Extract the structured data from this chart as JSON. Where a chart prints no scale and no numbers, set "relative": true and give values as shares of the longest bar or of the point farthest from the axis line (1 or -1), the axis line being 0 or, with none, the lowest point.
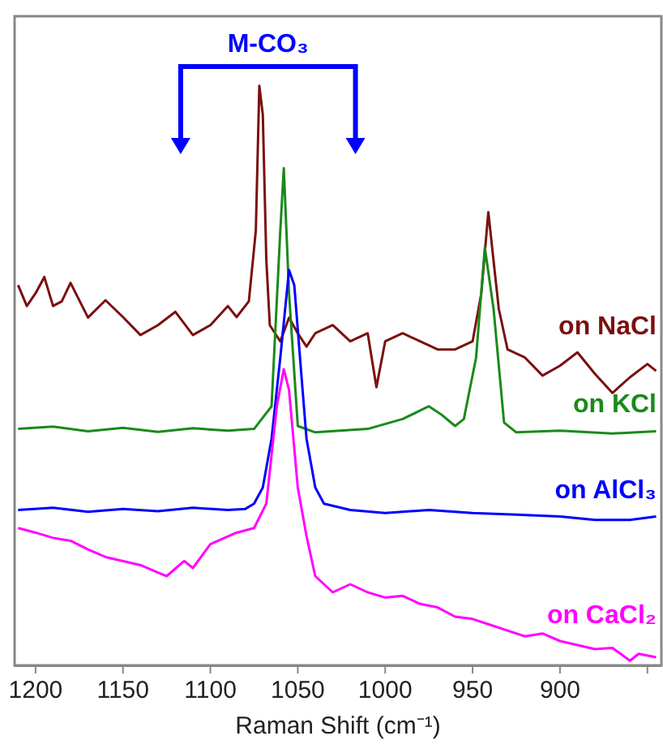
{
  "chart_data": {
    "type": "line",
    "relative": true,
    "xlabel": "Raman Shift (cm⁻¹)",
    "xlim": [
      1212,
      842
    ],
    "xticks": [
      1200,
      1150,
      1100,
      1050,
      1000,
      950,
      900,
      {
        "value": 850,
        "label": null
      }
    ],
    "annotations": [
      "M-CO₃"
    ],
    "marker": "none",
    "grid": false,
    "legend": false,
    "series": [
      {
        "name": "on NaCl",
        "color": "#7b1010",
        "x": [
          1210,
          1205,
          1200,
          1195,
          1190,
          1185,
          1180,
          1170,
          1160,
          1150,
          1140,
          1130,
          1120,
          1110,
          1100,
          1090,
          1085,
          1078,
          1074,
          1072,
          1070,
          1068,
          1066,
          1060,
          1055,
          1050,
          1045,
          1040,
          1030,
          1020,
          1010,
          1005,
          1000,
          990,
          980,
          970,
          960,
          950,
          945,
          941,
          938,
          935,
          930,
          920,
          910,
          900,
          890,
          880,
          870,
          860,
          850,
          845
        ],
        "values": [
          0.656,
          0.62,
          0.642,
          0.67,
          0.62,
          0.628,
          0.66,
          0.6,
          0.63,
          0.601,
          0.57,
          0.587,
          0.61,
          0.57,
          0.587,
          0.62,
          0.601,
          0.628,
          0.75,
          1.0,
          0.95,
          0.7,
          0.587,
          0.559,
          0.6,
          0.573,
          0.55,
          0.573,
          0.587,
          0.559,
          0.573,
          0.48,
          0.559,
          0.573,
          0.559,
          0.545,
          0.545,
          0.559,
          0.642,
          0.782,
          0.698,
          0.615,
          0.545,
          0.531,
          0.5,
          0.517,
          0.54,
          0.503,
          0.47,
          0.497,
          0.52,
          0.508
        ]
      },
      {
        "name": "on KCl",
        "color": "#1a8a1a",
        "x": [
          1210,
          1190,
          1170,
          1150,
          1130,
          1110,
          1090,
          1075,
          1065,
          1060,
          1058,
          1055,
          1050,
          1040,
          1010,
          990,
          975,
          968,
          960,
          955,
          948,
          943,
          938,
          932,
          925,
          900,
          870,
          845
        ],
        "values": [
          0.408,
          0.412,
          0.404,
          0.41,
          0.403,
          0.409,
          0.405,
          0.408,
          0.447,
          0.75,
          0.858,
          0.642,
          0.413,
          0.402,
          0.408,
          0.425,
          0.447,
          0.433,
          0.413,
          0.425,
          0.531,
          0.721,
          0.615,
          0.419,
          0.402,
          0.405,
          0.4,
          0.404
        ]
      },
      {
        "name": "on AlCl₃",
        "color": "#0000ff",
        "x": [
          1210,
          1190,
          1170,
          1150,
          1130,
          1110,
          1090,
          1080,
          1075,
          1070,
          1065,
          1060,
          1055,
          1052,
          1048,
          1045,
          1040,
          1035,
          1020,
          1000,
          975,
          950,
          925,
          900,
          880,
          860,
          845
        ],
        "values": [
          0.268,
          0.272,
          0.265,
          0.27,
          0.266,
          0.272,
          0.268,
          0.27,
          0.279,
          0.307,
          0.391,
          0.531,
          0.682,
          0.656,
          0.503,
          0.391,
          0.307,
          0.279,
          0.268,
          0.263,
          0.268,
          0.263,
          0.26,
          0.257,
          0.251,
          0.251,
          0.257
        ]
      },
      {
        "name": "on CaCl₂",
        "color": "#ff00ff",
        "x": [
          1210,
          1200,
          1190,
          1180,
          1170,
          1160,
          1150,
          1140,
          1130,
          1125,
          1115,
          1110,
          1100,
          1085,
          1075,
          1068,
          1062,
          1058,
          1055,
          1050,
          1045,
          1040,
          1030,
          1020,
          1010,
          1000,
          990,
          980,
          970,
          960,
          950,
          940,
          930,
          920,
          910,
          900,
          890,
          880,
          870,
          860,
          855,
          845
        ],
        "values": [
          0.237,
          0.229,
          0.22,
          0.215,
          0.2,
          0.187,
          0.18,
          0.173,
          0.16,
          0.154,
          0.18,
          0.168,
          0.209,
          0.229,
          0.237,
          0.279,
          0.447,
          0.511,
          0.475,
          0.307,
          0.223,
          0.154,
          0.126,
          0.14,
          0.126,
          0.117,
          0.12,
          0.106,
          0.1,
          0.084,
          0.08,
          0.07,
          0.06,
          0.05,
          0.055,
          0.042,
          0.035,
          0.028,
          0.03,
          0.008,
          0.02,
          0.014
        ]
      }
    ]
  }
}
